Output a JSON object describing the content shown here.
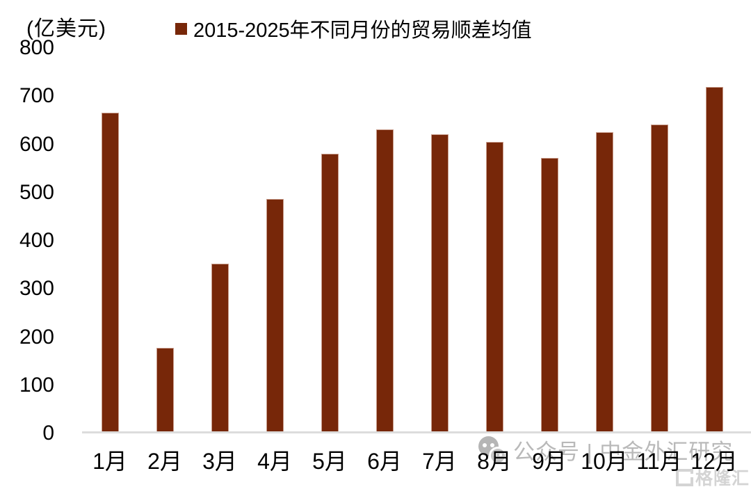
{
  "unit_label": "(亿美元)",
  "legend": {
    "marker_color": "#772709",
    "label": "2015-2025年不同月份的贸易顺差均值"
  },
  "chart_data": {
    "type": "bar",
    "title": "2015-2025年不同月份的贸易顺差均值",
    "ylabel": "亿美元",
    "categories": [
      "1月",
      "2月",
      "3月",
      "4月",
      "5月",
      "6月",
      "7月",
      "8月",
      "9月",
      "10月",
      "11月",
      "12月"
    ],
    "values": [
      665,
      178,
      353,
      487,
      580,
      631,
      621,
      605,
      572,
      625,
      641,
      719
    ],
    "yticks": [
      0,
      100,
      200,
      300,
      400,
      500,
      600,
      700,
      800
    ],
    "ylim": [
      0,
      800
    ],
    "bar_color": "#772709",
    "axis_line_color": "#dcdcdc",
    "grid": false,
    "legend_position": "top"
  },
  "watermark": {
    "text": "公众号 | 中金外汇研究",
    "logo_text": "格隆汇"
  }
}
